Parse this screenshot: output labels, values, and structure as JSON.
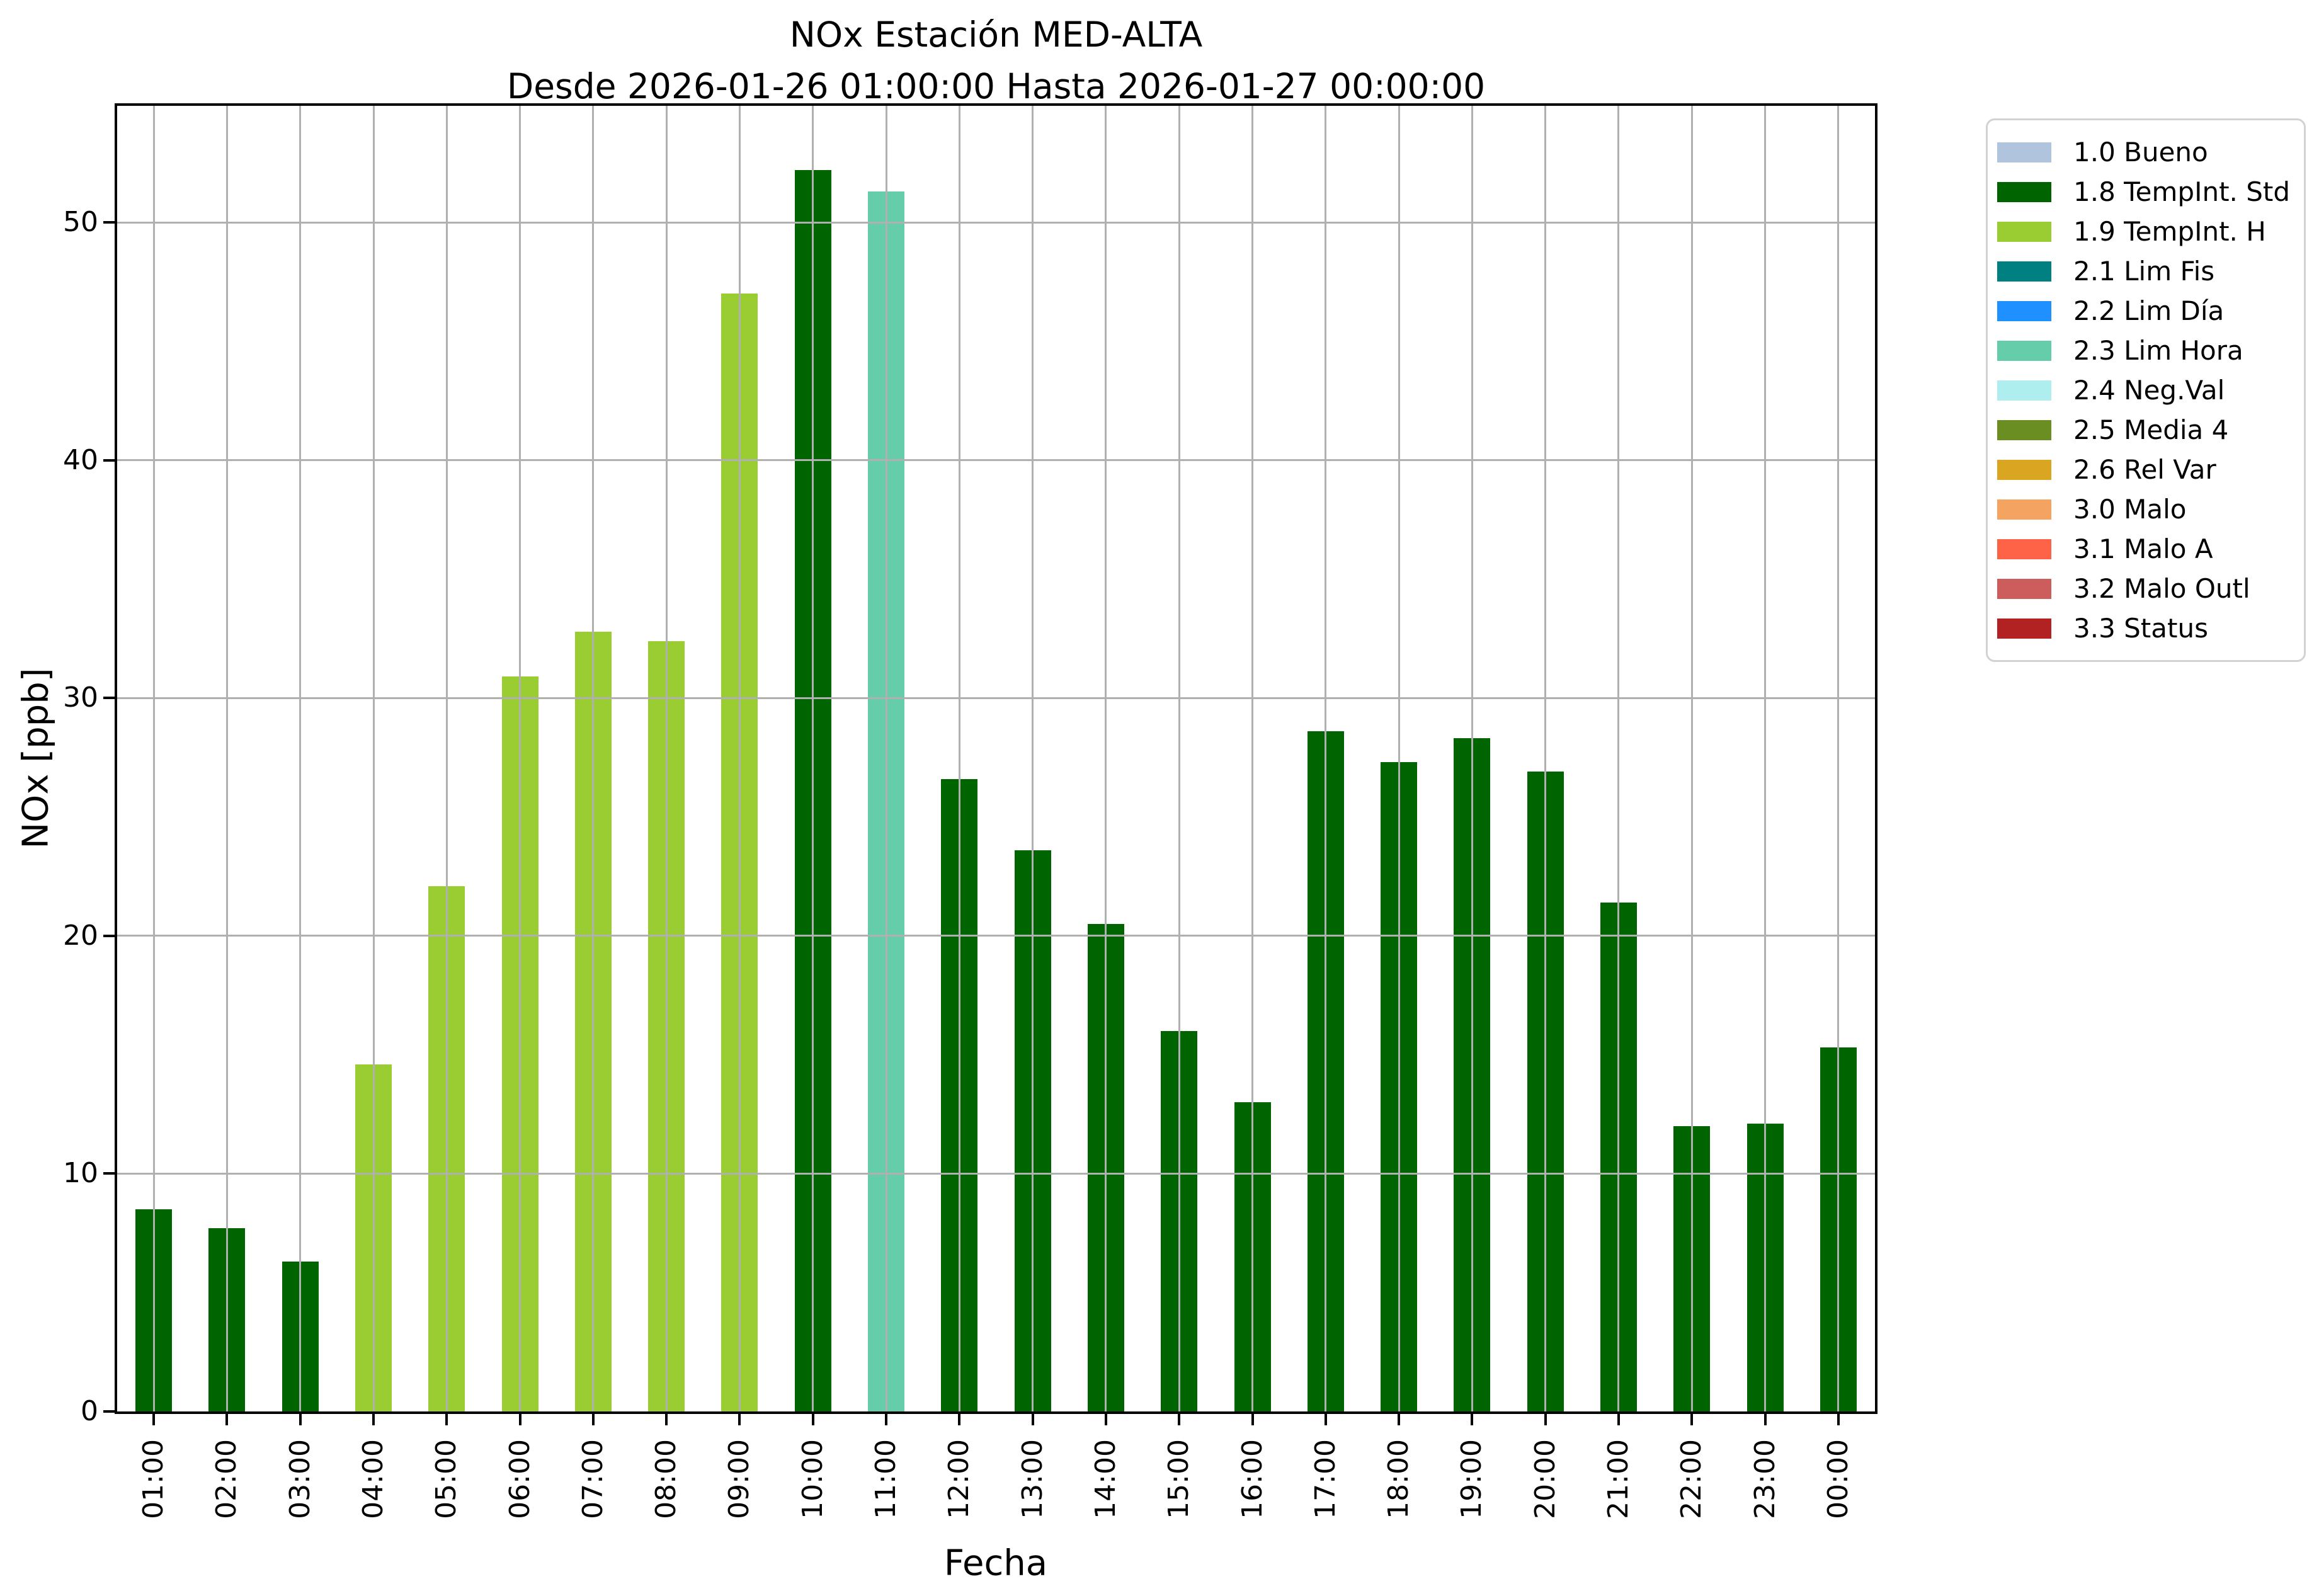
{
  "figure": {
    "title": "NOx Estación MED-ALTA",
    "subtitle": "Desde 2026-01-26 01:00:00 Hasta 2026-01-27 00:00:00",
    "xlabel": "Fecha",
    "ylabel": "NOx [ppb]"
  },
  "chart_data": {
    "type": "bar",
    "title": "NOx Estación MED-ALTA",
    "subtitle": "Desde 2026-01-26 01:00:00 Hasta 2026-01-27 00:00:00",
    "xlabel": "Fecha",
    "ylabel": "NOx [ppb]",
    "ylim": [
      0,
      54.9
    ],
    "yticks": [
      0,
      10,
      20,
      30,
      40,
      50
    ],
    "grid": true,
    "legend_position": "outside-right",
    "categories": [
      "01:00",
      "02:00",
      "03:00",
      "04:00",
      "05:00",
      "06:00",
      "07:00",
      "08:00",
      "09:00",
      "10:00",
      "11:00",
      "12:00",
      "13:00",
      "14:00",
      "15:00",
      "16:00",
      "17:00",
      "18:00",
      "19:00",
      "20:00",
      "21:00",
      "22:00",
      "23:00",
      "00:00"
    ],
    "values": [
      8.5,
      7.7,
      6.3,
      14.6,
      22.1,
      30.9,
      32.8,
      32.4,
      47.0,
      52.2,
      51.3,
      26.6,
      23.6,
      20.5,
      16.0,
      13.0,
      28.6,
      27.3,
      28.3,
      26.9,
      21.4,
      12.0,
      12.1,
      15.3
    ],
    "bar_flags": [
      "1.8 TempInt. Std",
      "1.8 TempInt. Std",
      "1.8 TempInt. Std",
      "1.9 TempInt. H",
      "1.9 TempInt. H",
      "1.9 TempInt. H",
      "1.9 TempInt. H",
      "1.9 TempInt. H",
      "1.9 TempInt. H",
      "1.8 TempInt. Std",
      "2.3 Lim Hora",
      "1.8 TempInt. Std",
      "1.8 TempInt. Std",
      "1.8 TempInt. Std",
      "1.8 TempInt. Std",
      "1.8 TempInt. Std",
      "1.8 TempInt. Std",
      "1.8 TempInt. Std",
      "1.8 TempInt. Std",
      "1.8 TempInt. Std",
      "1.8 TempInt. Std",
      "1.8 TempInt. Std",
      "1.8 TempInt. Std",
      "1.8 TempInt. Std"
    ],
    "flag_colors": {
      "1.8 TempInt. Std": "#006400",
      "1.9 TempInt. H": "#9acd32",
      "2.3 Lim Hora": "#66cdaa"
    }
  },
  "legend": {
    "items": [
      {
        "label": "1.0 Bueno",
        "color": "#b0c4de"
      },
      {
        "label": "1.8 TempInt. Std",
        "color": "#006400"
      },
      {
        "label": "1.9 TempInt. H",
        "color": "#9acd32"
      },
      {
        "label": "2.1 Lim Fis",
        "color": "#008080"
      },
      {
        "label": "2.2 Lim Día",
        "color": "#1e90ff"
      },
      {
        "label": "2.3 Lim Hora",
        "color": "#66cdaa"
      },
      {
        "label": "2.4 Neg.Val",
        "color": "#afeeee"
      },
      {
        "label": "2.5 Media 4",
        "color": "#6b8e23"
      },
      {
        "label": "2.6 Rel Var",
        "color": "#daa520"
      },
      {
        "label": "3.0 Malo",
        "color": "#f4a460"
      },
      {
        "label": "3.1 Malo A",
        "color": "#ff6347"
      },
      {
        "label": "3.2 Malo Outl",
        "color": "#cd5c5c"
      },
      {
        "label": "3.3 Status",
        "color": "#b22222"
      }
    ]
  },
  "style": {
    "grid_color": "#b0b0b0",
    "spine_color": "#000000",
    "background": "#ffffff"
  }
}
